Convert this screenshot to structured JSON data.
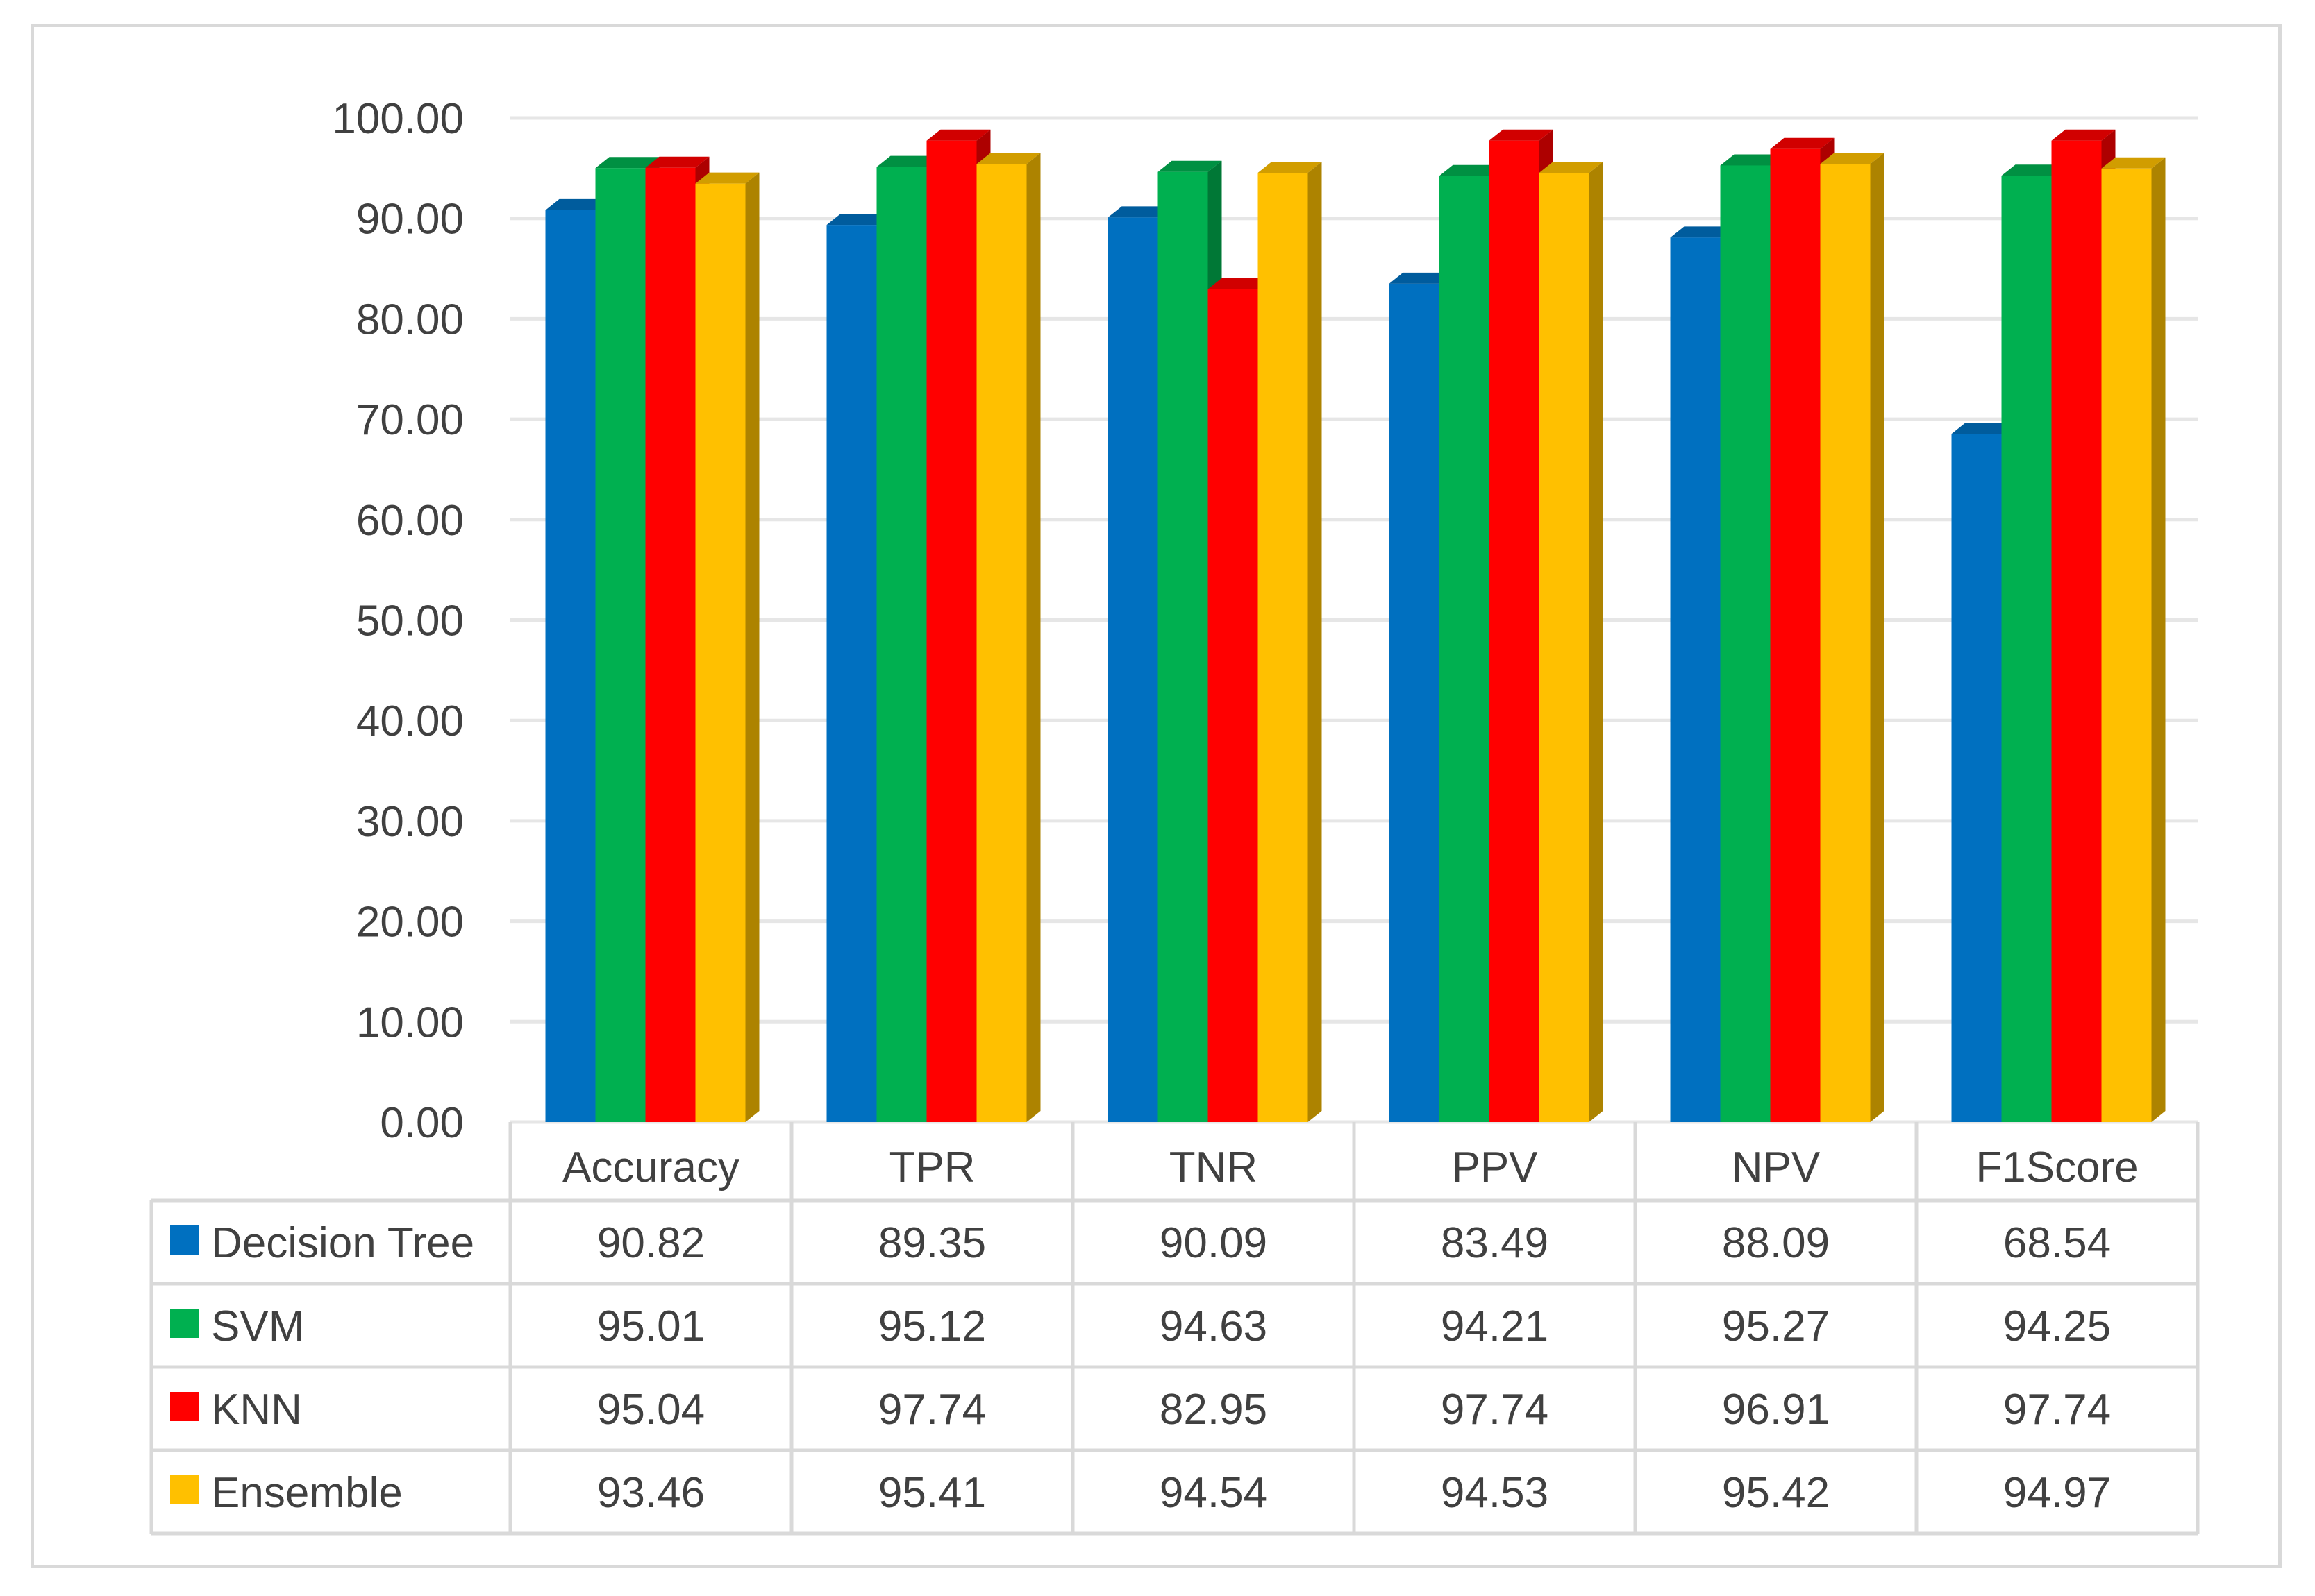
{
  "chart_data": {
    "type": "bar",
    "style": "3d-clustered-column-with-data-table",
    "title": "",
    "xlabel": "",
    "ylabel": "",
    "ylim": [
      0,
      100
    ],
    "ytick_step": 10,
    "ytick_labels": [
      "0.00",
      "10.00",
      "20.00",
      "30.00",
      "40.00",
      "50.00",
      "60.00",
      "70.00",
      "80.00",
      "90.00",
      "100.00"
    ],
    "grid": true,
    "legend_placement": "data-table-left",
    "categories": [
      "Accuracy",
      "TPR",
      "TNR",
      "PPV",
      "NPV",
      "F1Score"
    ],
    "series": [
      {
        "name": "Decision Tree",
        "color": "#0070C0",
        "values": [
          90.82,
          89.35,
          90.09,
          83.49,
          88.09,
          68.54
        ],
        "labels": [
          "90.82",
          "89.35",
          "90.09",
          "83.49",
          "88.09",
          "68.54"
        ]
      },
      {
        "name": "SVM",
        "color": "#00B050",
        "values": [
          95.01,
          95.12,
          94.63,
          94.21,
          95.27,
          94.25
        ],
        "labels": [
          "95.01",
          "95.12",
          "94.63",
          "94.21",
          "95.27",
          "94.25"
        ]
      },
      {
        "name": "KNN",
        "color": "#FF0000",
        "values": [
          95.04,
          97.74,
          82.95,
          97.74,
          96.91,
          97.74
        ],
        "labels": [
          "95.04",
          "97.74",
          "82.95",
          "97.74",
          "96.91",
          "97.74"
        ]
      },
      {
        "name": "Ensemble",
        "color": "#FFC000",
        "values": [
          93.46,
          95.41,
          94.54,
          94.53,
          95.42,
          94.97
        ],
        "labels": [
          "93.46",
          "95.41",
          "94.54",
          "94.53",
          "95.42",
          "94.97"
        ]
      }
    ]
  }
}
